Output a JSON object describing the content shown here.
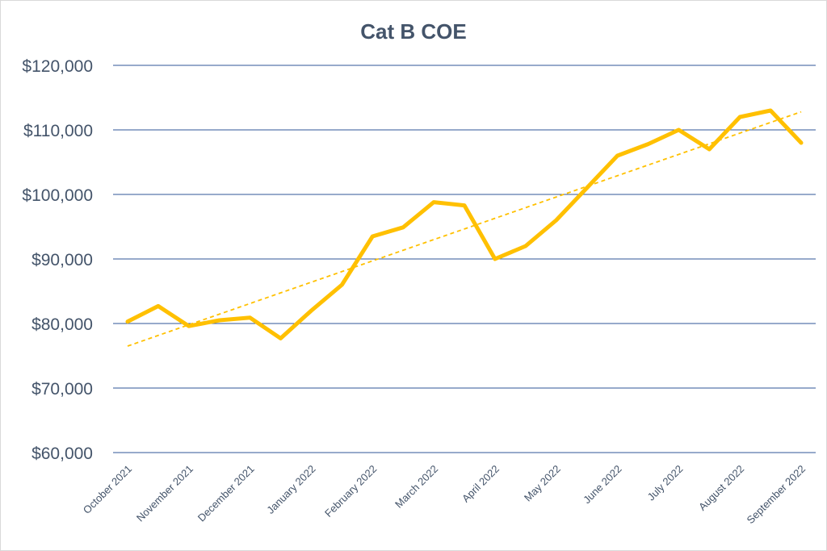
{
  "chart_data": {
    "type": "line",
    "title": "Cat B COE",
    "xlabel": "",
    "ylabel": "",
    "ylim": [
      60000,
      120000
    ],
    "y_ticks": [
      60000,
      70000,
      80000,
      90000,
      100000,
      110000,
      120000
    ],
    "y_tick_labels": [
      "$60,000",
      "$70,000",
      "$80,000",
      "$90,000",
      "$100,000",
      "$110,000",
      "$120,000"
    ],
    "x_tick_labels": [
      "October 2021",
      "November 2021",
      "December 2021",
      "January 2022",
      "February 2022",
      "March 2022",
      "April 2022",
      "May 2022",
      "June 2022",
      "July 2022",
      "August 2022",
      "September 2022"
    ],
    "grid": true,
    "legend": "none",
    "series": [
      {
        "color": "#ffc000",
        "values": [
          80300,
          82700,
          79600,
          80500,
          80900,
          77700,
          82000,
          86000,
          93500,
          94900,
          98800,
          98300,
          90000,
          92000,
          96000,
          101000,
          106000,
          107800,
          110000,
          107000,
          112000,
          113000,
          108000
        ]
      }
    ],
    "trendline": {
      "type": "linear",
      "color": "#ffc000",
      "style": "dashed",
      "start": 76500,
      "end": 112800
    }
  }
}
